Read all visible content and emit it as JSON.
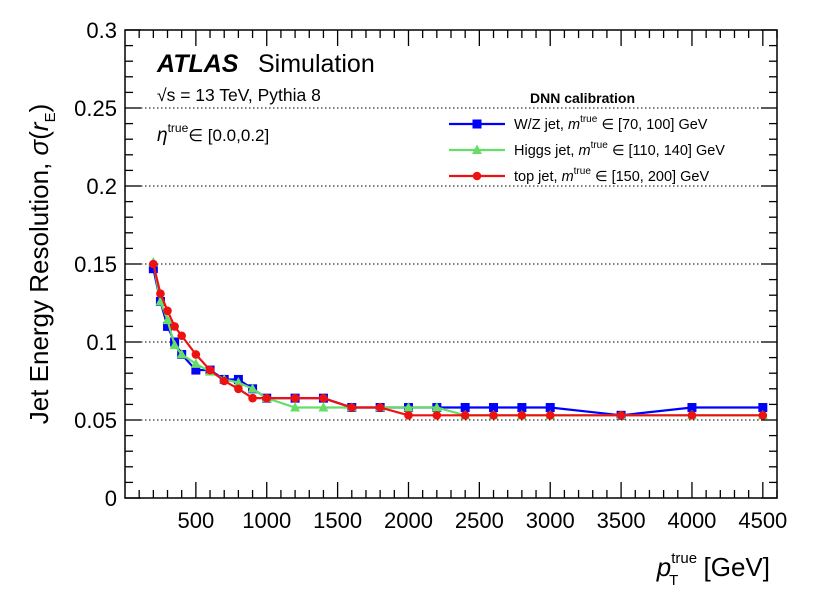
{
  "chart_data": {
    "type": "line",
    "experiment_label": "ATLAS",
    "experiment_sublabel": "Simulation",
    "energy_label": "√s = 13 TeV, Pythia 8",
    "eta_label": "η^true ∈ [0.0,0.2]",
    "eta_prefix": "η",
    "eta_sup": "true",
    "eta_range": "∈ [0.0,0.2]",
    "xlabel": "p_T^true [GeV]",
    "ylabel": "Jet Energy Resolution, σ(r_E)",
    "xlim": [
      0,
      4600
    ],
    "ylim": [
      0,
      0.3
    ],
    "xticks": [
      500,
      1000,
      1500,
      2000,
      2500,
      3000,
      3500,
      4000,
      4500
    ],
    "yticks": [
      0,
      0.05,
      0.1,
      0.15,
      0.2,
      0.25,
      0.3
    ],
    "ytick_labels": [
      "0",
      "0.05",
      "0.1",
      "0.15",
      "0.2",
      "0.25",
      "0.3"
    ],
    "grid": "horizontal dotted",
    "legend_title": "DNN calibration",
    "legend_position": "top-right",
    "series": [
      {
        "name": "W/Z jet, m^true ∈ [70, 100] GeV",
        "legend_prefix": "W/Z jet, ",
        "legend_range": "∈ [70, 100] GeV",
        "color": "#0000ff",
        "marker": "square",
        "x": [
          200,
          250,
          300,
          350,
          400,
          500,
          600,
          700,
          800,
          900,
          1000,
          1200,
          1400,
          1600,
          1800,
          2000,
          2200,
          2400,
          2600,
          2800,
          3000,
          3500,
          4000,
          4500
        ],
        "y": [
          0.147,
          0.126,
          0.11,
          0.1,
          0.092,
          0.082,
          0.082,
          0.076,
          0.076,
          0.07,
          0.064,
          0.064,
          0.064,
          0.058,
          0.058,
          0.058,
          0.058,
          0.058,
          0.058,
          0.058,
          0.058,
          0.053,
          0.058,
          0.058
        ]
      },
      {
        "name": "Higgs jet, m^true ∈ [110, 140] GeV",
        "legend_prefix": "Higgs jet, ",
        "legend_range": "∈ [110, 140] GeV",
        "color": "#66dd66",
        "marker": "triangle",
        "x": [
          200,
          250,
          300,
          350,
          400,
          500,
          600,
          700,
          800,
          900,
          1000,
          1200,
          1400,
          1600,
          1800,
          2000,
          2200,
          2400,
          2600,
          2800,
          3000,
          3500,
          4000,
          4500
        ],
        "y": [
          0.151,
          0.126,
          0.114,
          0.098,
          0.092,
          0.086,
          0.081,
          0.076,
          0.074,
          0.07,
          0.064,
          0.058,
          0.058,
          0.058,
          0.058,
          0.058,
          0.058,
          0.053,
          0.053,
          0.053,
          0.053,
          0.053,
          0.053,
          0.053
        ]
      },
      {
        "name": "top jet, m^true ∈ [150, 200] GeV",
        "legend_prefix": "top jet, ",
        "legend_range": "∈ [150, 200] GeV",
        "color": "#ee1111",
        "marker": "circle",
        "x": [
          200,
          250,
          300,
          350,
          400,
          500,
          600,
          700,
          800,
          900,
          1000,
          1200,
          1400,
          1600,
          1800,
          2000,
          2200,
          2400,
          2600,
          2800,
          3000,
          3500,
          4000,
          4500
        ],
        "y": [
          0.15,
          0.131,
          0.12,
          0.11,
          0.104,
          0.092,
          0.082,
          0.075,
          0.07,
          0.064,
          0.064,
          0.064,
          0.064,
          0.058,
          0.058,
          0.053,
          0.053,
          0.053,
          0.053,
          0.053,
          0.053,
          0.053,
          0.053,
          0.053
        ]
      }
    ]
  }
}
